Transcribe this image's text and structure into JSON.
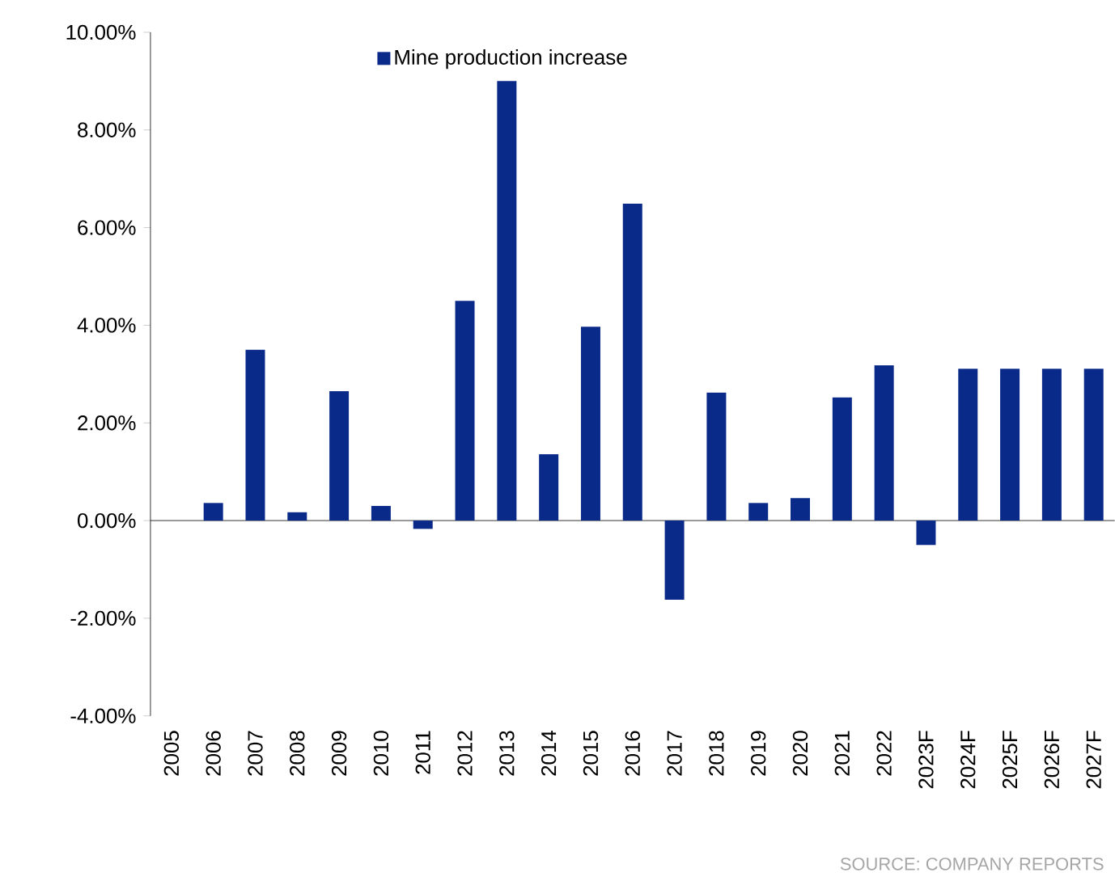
{
  "chart_data": {
    "type": "bar",
    "categories": [
      "2005",
      "2006",
      "2007",
      "2008",
      "2009",
      "2010",
      "2011",
      "2012",
      "2013",
      "2014",
      "2015",
      "2016",
      "2017",
      "2018",
      "2019",
      "2020",
      "2021",
      "2022",
      "2023F",
      "2024F",
      "2025F",
      "2026F",
      "2027F"
    ],
    "series": [
      {
        "name": "Mine production increase",
        "color": "#0a2a8a",
        "values": [
          0,
          0.36,
          3.5,
          0.17,
          2.65,
          0.3,
          -0.17,
          4.5,
          9.0,
          1.36,
          3.97,
          6.49,
          -1.62,
          2.62,
          0.36,
          0.46,
          2.52,
          3.18,
          -0.5,
          3.11,
          3.11,
          3.11,
          3.11
        ]
      }
    ],
    "ylim": [
      -4,
      10
    ],
    "yticks": [
      {
        "value": -4,
        "label": "-4.00%"
      },
      {
        "value": -2,
        "label": "-2.00%"
      },
      {
        "value": 0,
        "label": "0.00%"
      },
      {
        "value": 2,
        "label": "2.00%"
      },
      {
        "value": 4,
        "label": "4.00%"
      },
      {
        "value": 6,
        "label": "6.00%"
      },
      {
        "value": 8,
        "label": "8.00%"
      },
      {
        "value": 10,
        "label": "10.00%"
      }
    ],
    "legend": "top",
    "annotations": [
      "SOURCE: COMPANY REPORTS"
    ]
  }
}
